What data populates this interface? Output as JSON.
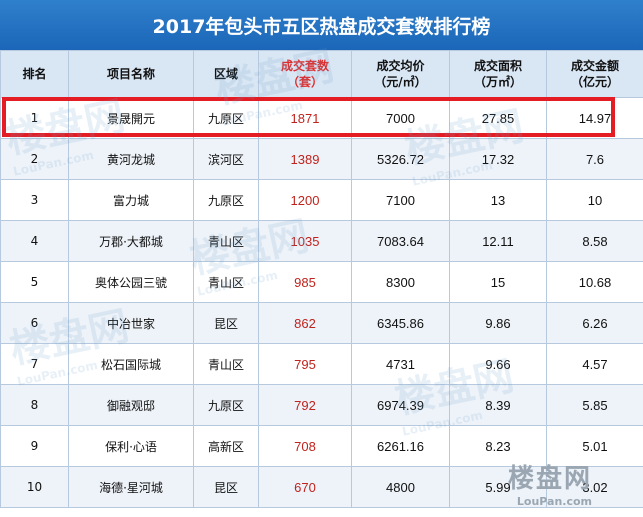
{
  "title": "2017年包头市五区热盘成交套数排行榜",
  "headers": {
    "rank": "排名",
    "project": "项目名称",
    "district": "区域",
    "sets_line1": "成交套数",
    "sets_line2": "（套）",
    "price_line1": "成交均价",
    "price_line2": "（元/㎡）",
    "area_line1": "成交面积",
    "area_line2": "（万㎡）",
    "amount_line1": "成交金额",
    "amount_line2": "（亿元）"
  },
  "rows": [
    {
      "rank": "1",
      "project": "景晟開元",
      "district": "九原区",
      "sets": "1871",
      "price": "7000",
      "area": "27.85",
      "amount": "14.97"
    },
    {
      "rank": "2",
      "project": "黄河龙城",
      "district": "滨河区",
      "sets": "1389",
      "price": "5326.72",
      "area": "17.32",
      "amount": "7.6"
    },
    {
      "rank": "3",
      "project": "富力城",
      "district": "九原区",
      "sets": "1200",
      "price": "7100",
      "area": "13",
      "amount": "10"
    },
    {
      "rank": "4",
      "project": "万郡·大都城",
      "district": "青山区",
      "sets": "1035",
      "price": "7083.64",
      "area": "12.11",
      "amount": "8.58"
    },
    {
      "rank": "5",
      "project": "奥体公园三號",
      "district": "青山区",
      "sets": "985",
      "price": "8300",
      "area": "15",
      "amount": "10.68"
    },
    {
      "rank": "6",
      "project": "中冶世家",
      "district": "昆区",
      "sets": "862",
      "price": "6345.86",
      "area": "9.86",
      "amount": "6.26"
    },
    {
      "rank": "7",
      "project": "松石国际城",
      "district": "青山区",
      "sets": "795",
      "price": "4731",
      "area": "9.66",
      "amount": "4.57"
    },
    {
      "rank": "8",
      "project": "御融观邸",
      "district": "九原区",
      "sets": "792",
      "price": "6974.39",
      "area": "8.39",
      "amount": "5.85"
    },
    {
      "rank": "9",
      "project": "保利·心语",
      "district": "高新区",
      "sets": "708",
      "price": "6261.16",
      "area": "8.23",
      "amount": "5.01"
    },
    {
      "rank": "10",
      "project": "海德·星河城",
      "district": "昆区",
      "sets": "670",
      "price": "4800",
      "area": "5.99",
      "amount": "3.02"
    }
  ],
  "watermark": {
    "cn": "楼盘网",
    "en": "LouPan.com"
  },
  "colors": {
    "header_bar": "#1f6bbd",
    "header_row": "#d9e6f4",
    "sets_text": "#c0231d",
    "highlight_border": "#e41d24"
  }
}
